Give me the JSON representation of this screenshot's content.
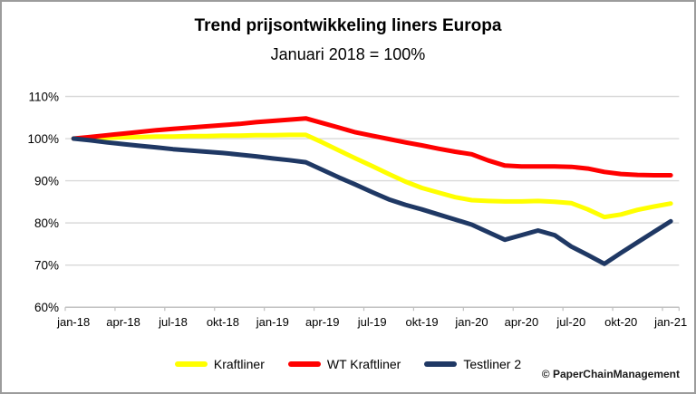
{
  "frame": {
    "copyright": "© PaperChainManagement"
  },
  "chart_data": {
    "type": "line",
    "title": "Trend prijsontwikkeling liners Europa",
    "subtitle": "Januari 2018 = 100%",
    "x": [
      "jan-18",
      "feb-18",
      "mrt-18",
      "apr-18",
      "mei-18",
      "jun-18",
      "jul-18",
      "aug-18",
      "sep-18",
      "okt-18",
      "nov-18",
      "dec-18",
      "jan-19",
      "feb-19",
      "mrt-19",
      "apr-19",
      "mei-19",
      "jun-19",
      "jul-19",
      "aug-19",
      "sep-19",
      "okt-19",
      "nov-19",
      "dec-19",
      "jan-20",
      "feb-20",
      "mrt-20",
      "apr-20",
      "mei-20",
      "jun-20",
      "jul-20",
      "aug-20",
      "sep-20",
      "okt-20",
      "nov-20",
      "dec-20",
      "jan-21"
    ],
    "x_tick_labels": [
      "jan-18",
      "apr-18",
      "jul-18",
      "okt-18",
      "jan-19",
      "apr-19",
      "jul-19",
      "okt-19",
      "jan-20",
      "apr-20",
      "jul-20",
      "okt-20",
      "jan-21"
    ],
    "x_tick_every": 3,
    "y_axis": {
      "min": 60,
      "max": 110,
      "step": 10,
      "tick_values": [
        110,
        100,
        90,
        80,
        70,
        60
      ],
      "tick_labels": [
        "110%",
        "100%",
        "90%",
        "80%",
        "70%",
        "60%"
      ]
    },
    "grid": true,
    "legend_position": "bottom",
    "series": [
      {
        "name": "Kraftliner",
        "color": "#FFFF00",
        "values": [
          100.0,
          100.1,
          100.2,
          100.3,
          100.4,
          100.5,
          100.5,
          100.6,
          100.6,
          100.7,
          100.7,
          100.8,
          100.8,
          100.9,
          100.9,
          99.1,
          97.2,
          95.3,
          93.5,
          91.6,
          89.8,
          88.3,
          87.2,
          86.1,
          85.4,
          85.2,
          85.1,
          85.1,
          85.2,
          85.0,
          84.7,
          83.2,
          81.4,
          82.0,
          83.1,
          83.9,
          84.6
        ]
      },
      {
        "name": "WT Kraftliner",
        "color": "#FF0000",
        "values": [
          100.0,
          100.4,
          100.8,
          101.2,
          101.6,
          102.0,
          102.3,
          102.6,
          102.9,
          103.2,
          103.5,
          103.9,
          104.2,
          104.5,
          104.8,
          103.7,
          102.6,
          101.5,
          100.7,
          99.9,
          99.1,
          98.4,
          97.6,
          96.9,
          96.3,
          94.8,
          93.6,
          93.4,
          93.4,
          93.4,
          93.3,
          92.9,
          92.1,
          91.6,
          91.4,
          91.3,
          91.3
        ]
      },
      {
        "name": "Testliner 2",
        "color": "#1F3864",
        "values": [
          100.0,
          99.6,
          99.1,
          98.7,
          98.3,
          97.9,
          97.5,
          97.2,
          96.9,
          96.6,
          96.2,
          95.8,
          95.3,
          94.9,
          94.4,
          92.6,
          90.8,
          89.1,
          87.3,
          85.6,
          84.3,
          83.2,
          82.0,
          80.8,
          79.6,
          77.8,
          76.0,
          77.1,
          78.2,
          77.1,
          74.4,
          72.4,
          70.3,
          72.9,
          75.4,
          77.9,
          80.4
        ]
      }
    ],
    "style_colors": {
      "gridline": "#D9D9D9",
      "axis_line": "#BFBFBF",
      "text": "#000000"
    }
  }
}
